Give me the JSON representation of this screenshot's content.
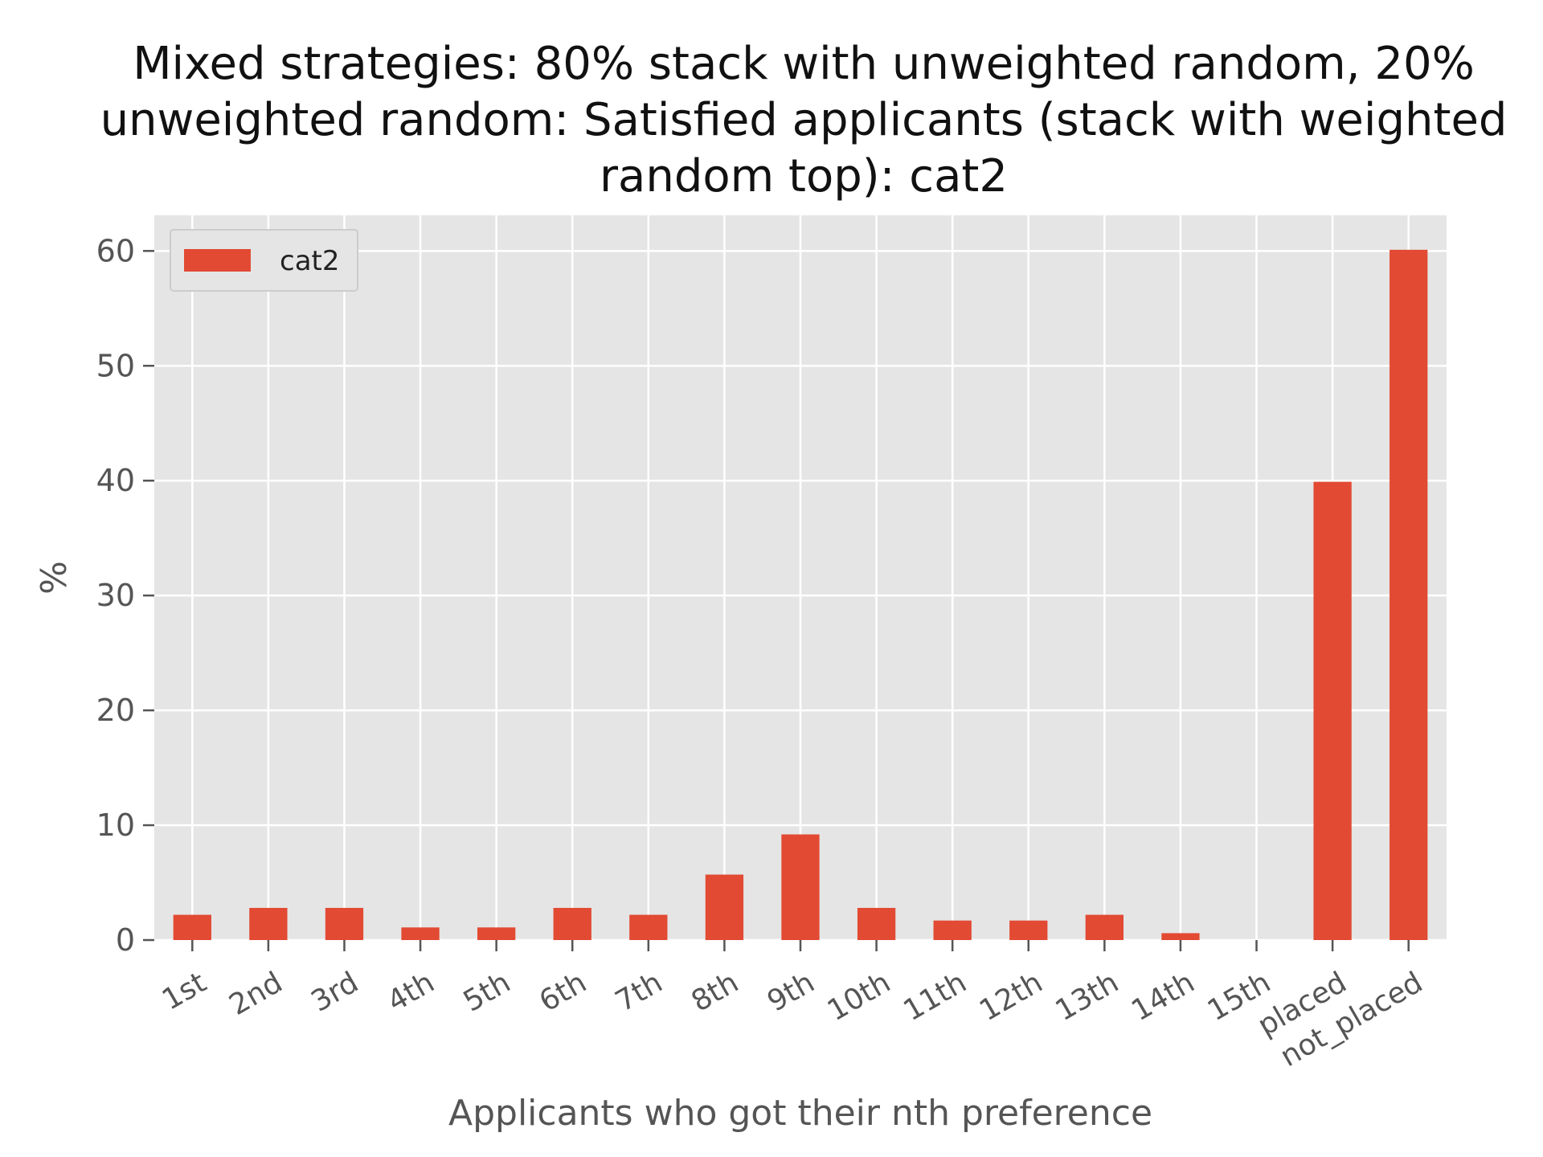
{
  "chart_data": {
    "type": "bar",
    "title_lines": [
      "Mixed strategies: 80% stack with unweighted random, 20%",
      "unweighted random: Satisfied applicants (stack with weighted",
      "random top): cat2"
    ],
    "xlabel": "Applicants who got their nth preference",
    "ylabel": "%",
    "categories": [
      "1st",
      "2nd",
      "3rd",
      "4th",
      "5th",
      "6th",
      "7th",
      "8th",
      "9th",
      "10th",
      "11th",
      "12th",
      "13th",
      "14th",
      "15th",
      "placed",
      "not_placed"
    ],
    "series": [
      {
        "name": "cat2",
        "color": "#E24A33",
        "values": [
          2.2,
          2.8,
          2.8,
          1.1,
          1.1,
          2.8,
          2.2,
          5.7,
          9.2,
          2.8,
          1.7,
          1.7,
          2.2,
          0.6,
          0.0,
          39.9,
          60.1
        ]
      }
    ],
    "ylim": [
      0,
      63.1
    ],
    "yticks": [
      0,
      10,
      20,
      30,
      40,
      50,
      60
    ],
    "grid": true,
    "legend_position": "top-left",
    "background_color": "#E5E5E5",
    "grid_color": "#FFFFFF"
  }
}
